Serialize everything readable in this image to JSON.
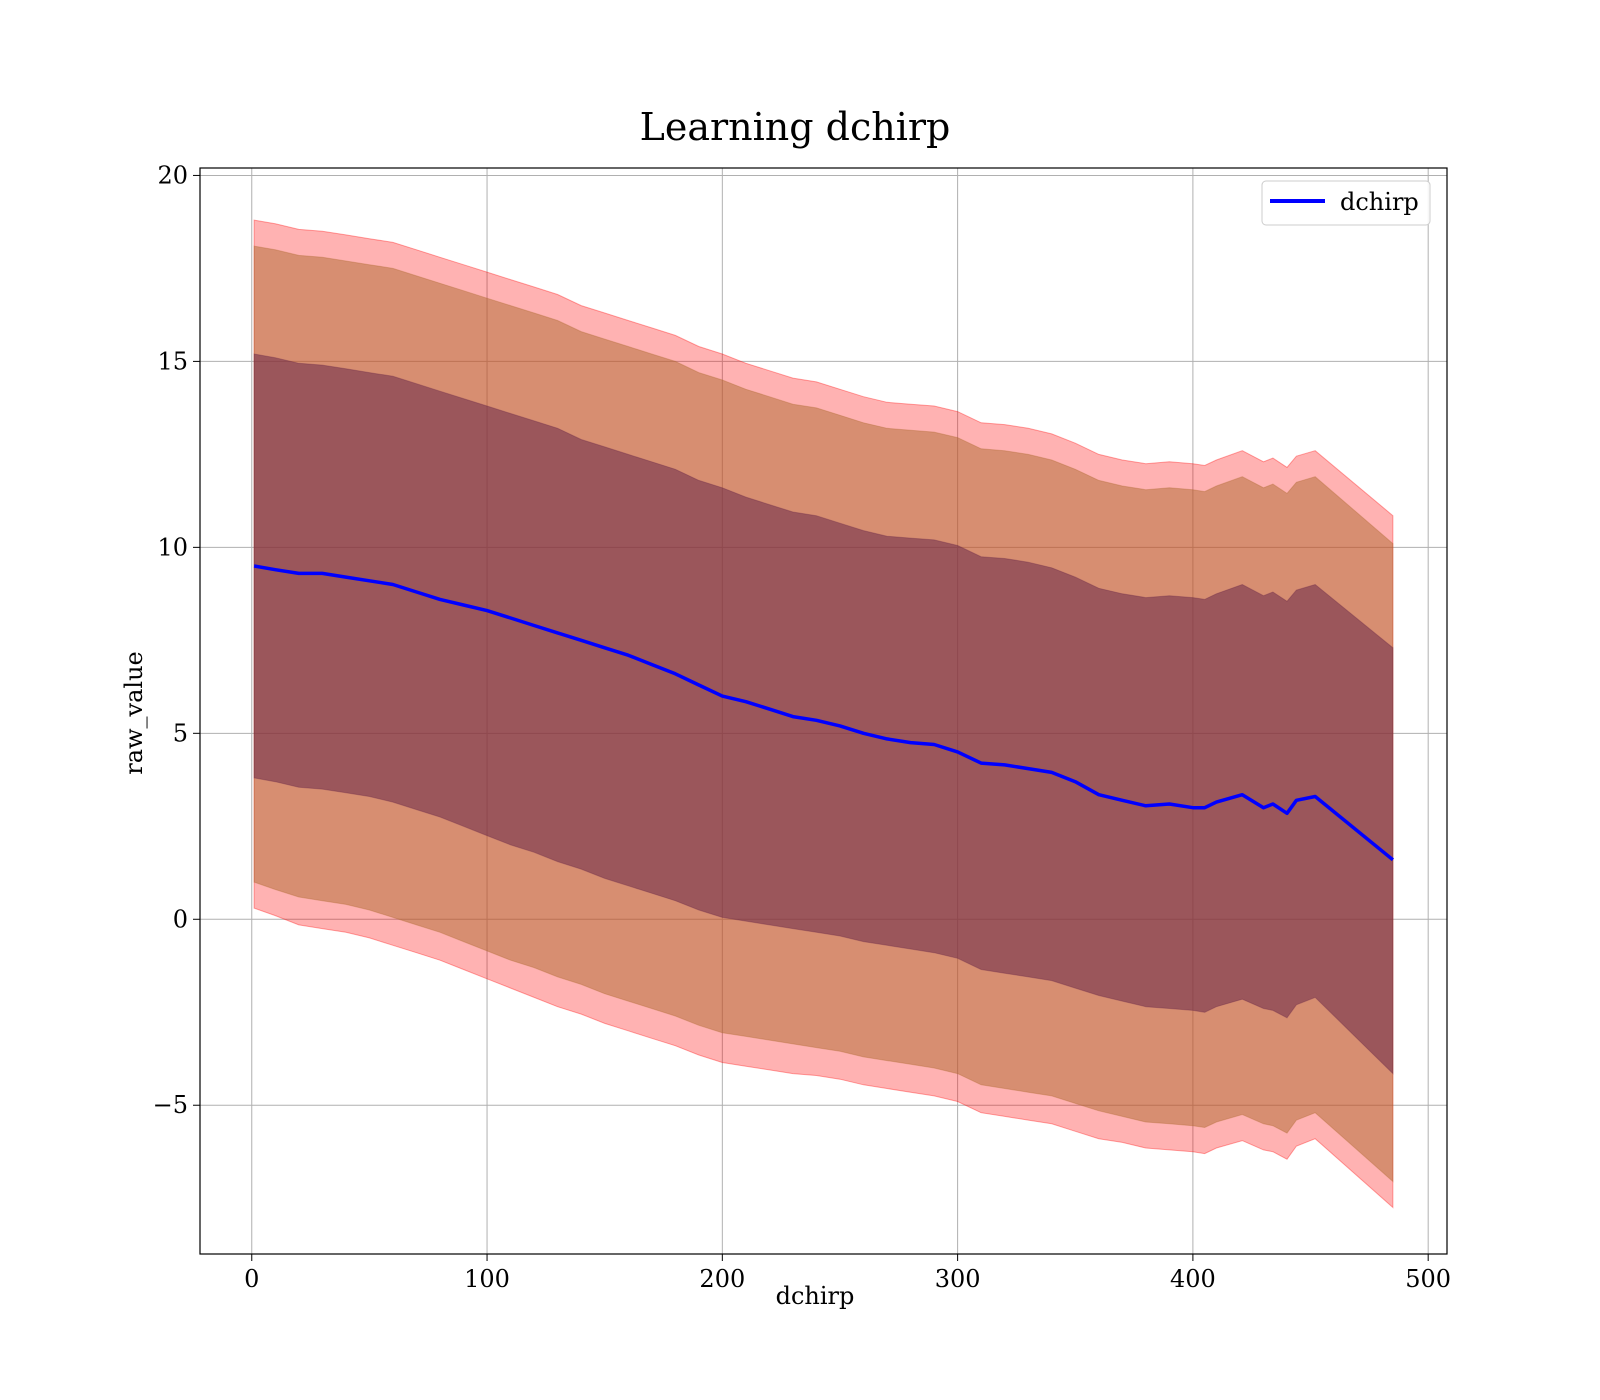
{
  "chart_data": {
    "type": "area",
    "title": "Learning dchirp",
    "xlabel": "dchirp",
    "ylabel": "raw_value",
    "xlim": [
      -22,
      508
    ],
    "ylim": [
      -9,
      20.2
    ],
    "xticks": [
      0,
      100,
      200,
      300,
      400,
      500
    ],
    "yticks": [
      -5,
      0,
      5,
      10,
      15,
      20
    ],
    "xtick_labels": [
      "0",
      "100",
      "200",
      "300",
      "400",
      "500"
    ],
    "ytick_labels": [
      "−5",
      "0",
      "5",
      "10",
      "15",
      "20"
    ],
    "grid": true,
    "legend_position": "top-right",
    "series": [
      {
        "name": "dchirp",
        "color": "#0000ff",
        "x": [
          1,
          10,
          20,
          30,
          40,
          50,
          60,
          70,
          80,
          90,
          100,
          110,
          120,
          130,
          140,
          150,
          160,
          170,
          180,
          190,
          200,
          210,
          220,
          230,
          240,
          250,
          260,
          270,
          280,
          290,
          300,
          310,
          320,
          330,
          340,
          350,
          360,
          370,
          380,
          390,
          400,
          405,
          410,
          421,
          430,
          434,
          440,
          444,
          452,
          485
        ],
        "y": [
          9.5,
          9.4,
          9.3,
          9.3,
          9.2,
          9.1,
          9.0,
          8.8,
          8.6,
          8.45,
          8.3,
          8.1,
          7.9,
          7.7,
          7.5,
          7.3,
          7.1,
          6.85,
          6.6,
          6.3,
          6.0,
          5.85,
          5.65,
          5.45,
          5.35,
          5.2,
          5.0,
          4.85,
          4.75,
          4.7,
          4.5,
          4.2,
          4.15,
          4.05,
          3.95,
          3.7,
          3.35,
          3.2,
          3.05,
          3.1,
          3.0,
          3.0,
          3.15,
          3.35,
          3.0,
          3.1,
          2.85,
          3.2,
          3.3,
          1.6
        ],
        "bands": [
          {
            "name": "outer",
            "color": "#ff0000",
            "opacity": 0.3,
            "lower": [
              0.3,
              0.1,
              -0.15,
              -0.25,
              -0.35,
              -0.5,
              -0.7,
              -0.9,
              -1.1,
              -1.35,
              -1.6,
              -1.85,
              -2.1,
              -2.35,
              -2.55,
              -2.8,
              -3.0,
              -3.2,
              -3.4,
              -3.65,
              -3.85,
              -3.95,
              -4.05,
              -4.15,
              -4.2,
              -4.3,
              -4.45,
              -4.55,
              -4.65,
              -4.75,
              -4.9,
              -5.2,
              -5.3,
              -5.4,
              -5.5,
              -5.7,
              -5.9,
              -6.0,
              -6.15,
              -6.2,
              -6.25,
              -6.3,
              -6.15,
              -5.95,
              -6.2,
              -6.25,
              -6.45,
              -6.1,
              -5.9,
              -7.75
            ],
            "upper": [
              18.8,
              18.7,
              18.55,
              18.5,
              18.4,
              18.3,
              18.2,
              18.0,
              17.8,
              17.6,
              17.4,
              17.2,
              17.0,
              16.8,
              16.5,
              16.3,
              16.1,
              15.9,
              15.7,
              15.4,
              15.2,
              14.95,
              14.75,
              14.55,
              14.45,
              14.25,
              14.05,
              13.9,
              13.85,
              13.8,
              13.65,
              13.35,
              13.3,
              13.2,
              13.05,
              12.8,
              12.5,
              12.35,
              12.25,
              12.3,
              12.25,
              12.2,
              12.35,
              12.6,
              12.3,
              12.4,
              12.15,
              12.45,
              12.6,
              10.85
            ]
          },
          {
            "name": "middle",
            "color": "#b06a30",
            "opacity": 0.5,
            "lower": [
              1.0,
              0.8,
              0.6,
              0.5,
              0.4,
              0.25,
              0.05,
              -0.15,
              -0.35,
              -0.6,
              -0.85,
              -1.1,
              -1.3,
              -1.55,
              -1.75,
              -2.0,
              -2.2,
              -2.4,
              -2.6,
              -2.85,
              -3.05,
              -3.15,
              -3.25,
              -3.35,
              -3.45,
              -3.55,
              -3.7,
              -3.8,
              -3.9,
              -4.0,
              -4.15,
              -4.45,
              -4.55,
              -4.65,
              -4.75,
              -4.95,
              -5.15,
              -5.3,
              -5.45,
              -5.5,
              -5.55,
              -5.6,
              -5.45,
              -5.25,
              -5.5,
              -5.55,
              -5.75,
              -5.4,
              -5.2,
              -7.05
            ],
            "upper": [
              18.1,
              18.0,
              17.85,
              17.8,
              17.7,
              17.6,
              17.5,
              17.3,
              17.1,
              16.9,
              16.7,
              16.5,
              16.3,
              16.1,
              15.8,
              15.6,
              15.4,
              15.2,
              15.0,
              14.7,
              14.5,
              14.25,
              14.05,
              13.85,
              13.75,
              13.55,
              13.35,
              13.2,
              13.15,
              13.1,
              12.95,
              12.65,
              12.6,
              12.5,
              12.35,
              12.1,
              11.8,
              11.65,
              11.55,
              11.6,
              11.55,
              11.5,
              11.65,
              11.9,
              11.6,
              11.7,
              11.45,
              11.75,
              11.9,
              10.1
            ]
          },
          {
            "name": "inner",
            "color": "#6a2848",
            "opacity": 0.55,
            "lower": [
              3.8,
              3.7,
              3.55,
              3.5,
              3.4,
              3.3,
              3.15,
              2.95,
              2.75,
              2.5,
              2.25,
              2.0,
              1.8,
              1.55,
              1.35,
              1.1,
              0.9,
              0.7,
              0.5,
              0.25,
              0.05,
              -0.05,
              -0.15,
              -0.25,
              -0.35,
              -0.45,
              -0.6,
              -0.7,
              -0.8,
              -0.9,
              -1.05,
              -1.35,
              -1.45,
              -1.55,
              -1.65,
              -1.85,
              -2.05,
              -2.2,
              -2.35,
              -2.4,
              -2.45,
              -2.5,
              -2.35,
              -2.15,
              -2.4,
              -2.45,
              -2.65,
              -2.3,
              -2.1,
              -4.15
            ],
            "upper": [
              15.2,
              15.1,
              14.95,
              14.9,
              14.8,
              14.7,
              14.6,
              14.4,
              14.2,
              14.0,
              13.8,
              13.6,
              13.4,
              13.2,
              12.9,
              12.7,
              12.5,
              12.3,
              12.1,
              11.8,
              11.6,
              11.35,
              11.15,
              10.95,
              10.85,
              10.65,
              10.45,
              10.3,
              10.25,
              10.2,
              10.05,
              9.75,
              9.7,
              9.6,
              9.45,
              9.2,
              8.9,
              8.75,
              8.65,
              8.7,
              8.65,
              8.6,
              8.75,
              9.0,
              8.7,
              8.8,
              8.55,
              8.85,
              9.0,
              7.3
            ]
          }
        ]
      }
    ]
  }
}
